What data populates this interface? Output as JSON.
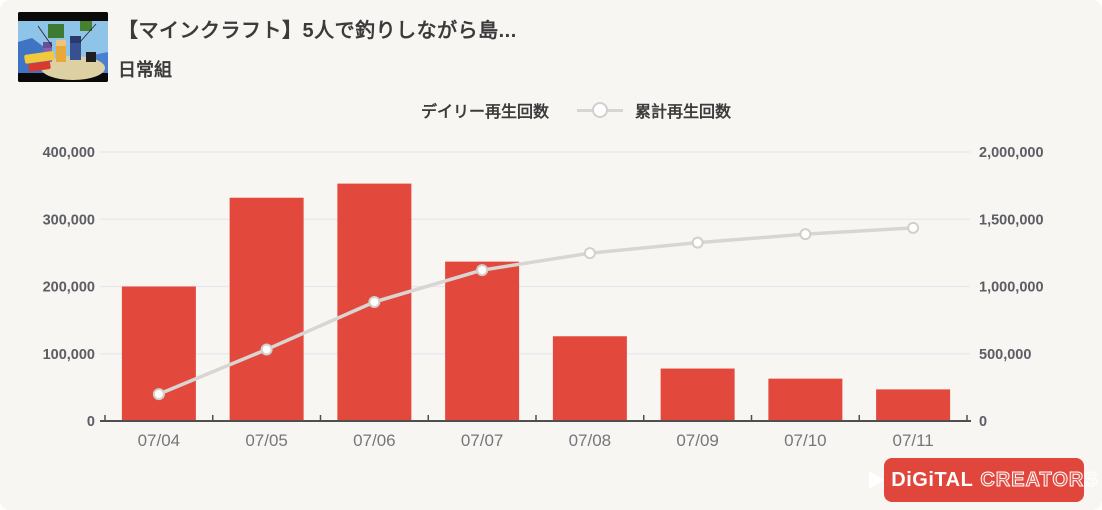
{
  "header": {
    "video_title": "【マインクラフト】5人で釣りしながら島...",
    "channel_name": "日常組"
  },
  "legend": {
    "daily_label": "デイリー再生回数",
    "cumulative_label": "累計再生回数"
  },
  "chart_data": {
    "type": "combo_bar_line",
    "title": "",
    "categories": [
      "07/04",
      "07/05",
      "07/06",
      "07/07",
      "07/08",
      "07/09",
      "07/10",
      "07/11"
    ],
    "series": [
      {
        "name": "デイリー再生回数",
        "type": "bar",
        "axis": "left",
        "color": "#e2493c",
        "values": [
          200000,
          332000,
          353000,
          237000,
          126000,
          78000,
          63000,
          47000
        ]
      },
      {
        "name": "累計再生回数",
        "type": "line",
        "axis": "right",
        "color": "#d9d5d2",
        "point_fill": "#ffffff",
        "point_stroke": "#d2cfcc",
        "values": [
          200000,
          532000,
          885000,
          1122000,
          1248000,
          1326000,
          1389000,
          1436000
        ]
      }
    ],
    "left_axis": {
      "min": 0,
      "max": 400000,
      "ticks": [
        0,
        100000,
        200000,
        300000,
        400000
      ],
      "tick_labels": [
        "0",
        "100,000",
        "200,000",
        "300,000",
        "400,000"
      ]
    },
    "right_axis": {
      "min": 0,
      "max": 2000000,
      "ticks": [
        0,
        500000,
        1000000,
        1500000,
        2000000
      ],
      "tick_labels": [
        "0",
        "500,000",
        "1,000,000",
        "1,500,000",
        "2,000,000"
      ]
    },
    "grid": true,
    "legend_position": "top-center"
  },
  "branding": {
    "logo_word_1": "DiGiTAL",
    "logo_word_2": "CREATORS",
    "logo_background": "#e0463b"
  },
  "colors": {
    "card_background": "#f8f6f3",
    "bar": "#e2493c",
    "line": "#d9d5d2",
    "grid": "#e7e7f0",
    "axis_line": "#4f4f4f",
    "axis_tick_text": "#5d5d64",
    "x_label_text": "#76767b",
    "title_text": "#3b3b3b"
  }
}
